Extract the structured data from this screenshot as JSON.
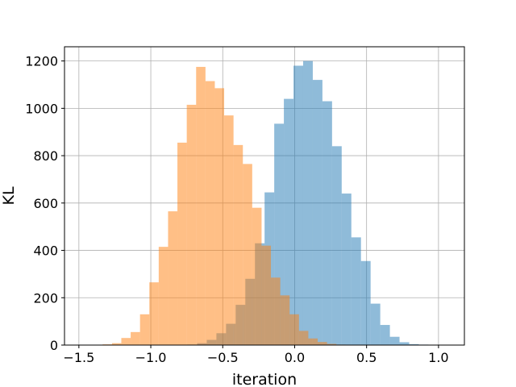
{
  "chart_data": {
    "type": "bar",
    "title": "",
    "xlabel": "iteration",
    "ylabel": "KL",
    "xlim": [
      -1.6,
      1.18
    ],
    "ylim": [
      0,
      1260
    ],
    "grid": true,
    "x_ticks": [
      -1.5,
      -1.0,
      -0.5,
      0.0,
      0.5,
      1.0
    ],
    "x_tick_labels": [
      "−1.5",
      "−1.0",
      "−0.5",
      "0.0",
      "0.5",
      "1.0"
    ],
    "y_ticks": [
      0,
      200,
      400,
      600,
      800,
      1000,
      1200
    ],
    "y_tick_labels": [
      "0",
      "200",
      "400",
      "600",
      "800",
      "1000",
      "1200"
    ],
    "series": [
      {
        "color": "#1f77b4",
        "opacity": 0.5,
        "bin_edges": [
          -0.745,
          -0.678,
          -0.611,
          -0.544,
          -0.477,
          -0.41,
          -0.343,
          -0.276,
          -0.209,
          -0.142,
          -0.075,
          -0.008,
          0.059,
          0.126,
          0.193,
          0.26,
          0.327,
          0.394,
          0.461,
          0.528,
          0.595,
          0.662,
          0.729,
          0.796,
          0.863,
          0.93,
          0.997,
          1.064
        ],
        "counts": [
          2,
          8,
          22,
          50,
          90,
          170,
          280,
          430,
          645,
          935,
          1040,
          1180,
          1200,
          1120,
          1030,
          840,
          640,
          455,
          355,
          175,
          85,
          35,
          12,
          4,
          2,
          1,
          1
        ]
      },
      {
        "color": "#ff7f0e",
        "opacity": 0.5,
        "bin_edges": [
          -1.335,
          -1.27,
          -1.205,
          -1.14,
          -1.075,
          -1.01,
          -0.945,
          -0.88,
          -0.815,
          -0.75,
          -0.685,
          -0.62,
          -0.555,
          -0.49,
          -0.425,
          -0.36,
          -0.295,
          -0.23,
          -0.165,
          -0.1,
          -0.035,
          0.03,
          0.095,
          0.16,
          0.225,
          0.29,
          0.355
        ],
        "counts": [
          3,
          8,
          30,
          55,
          130,
          265,
          415,
          565,
          855,
          1015,
          1175,
          1115,
          1085,
          970,
          845,
          765,
          580,
          420,
          285,
          210,
          130,
          60,
          28,
          13,
          5,
          2
        ]
      }
    ]
  }
}
